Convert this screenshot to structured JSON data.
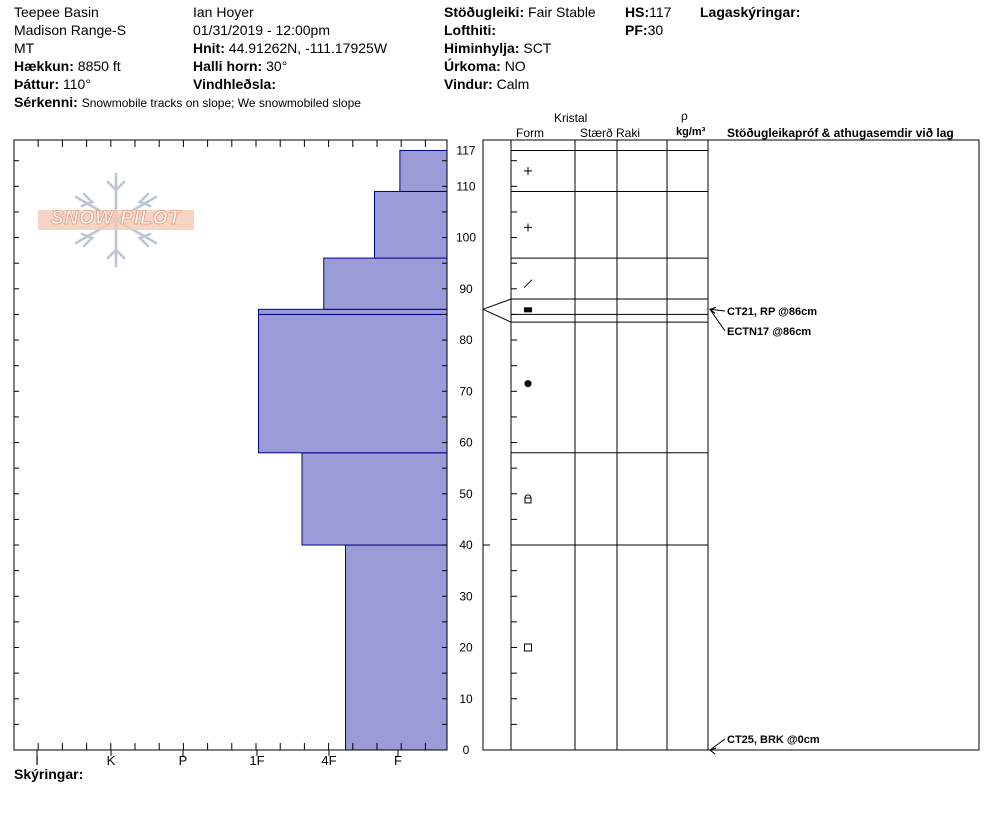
{
  "header": {
    "location": "Teepee Basin",
    "range": "Madison Range-S",
    "state": "MT",
    "elevation_label": "Hækkun:",
    "elevation_value": "8850 ft",
    "aspect_label": "Þáttur:",
    "aspect_value": "110°",
    "features_label": "Sérkenni:",
    "features_value": "Snowmobile tracks on slope; We snowmobiled slope",
    "observer": "Ian Hoyer",
    "datetime": "01/31/2019 - 12:00pm",
    "coords_label": "Hnit:",
    "coords_value": "44.91262N, -111.17925W",
    "slope_label": "Halli horn:",
    "slope_value": "30°",
    "wind_loading_label": "Vindhleðsla:",
    "wind_loading_value": "",
    "stability_label": "Stöðugleiki:",
    "stability_value": "Fair Stable",
    "airtemp_label": "Lofthiti:",
    "airtemp_value": "",
    "sky_label": "Himinhylja:",
    "sky_value": "SCT",
    "precip_label": "Úrkoma:",
    "precip_value": "NO",
    "wind_label": "Vindur:",
    "wind_value": "Calm",
    "hs_label": "HS:",
    "hs_value": "117",
    "pf_label": "PF:",
    "pf_value": "30",
    "layer_notes_label": "Lagaskýringar:"
  },
  "legend_label": "Skýringar:",
  "logo_text": "SNOW PILOT",
  "columns": {
    "crystal": "Kristal",
    "form": "Form",
    "size": "Stærð",
    "moisture": "Raki",
    "rho": "ρ",
    "density_unit": "kg/m³",
    "tests": "Stöðugleikapróf & athugasemdir við lag"
  },
  "colors": {
    "hardness_fill": "#9b9bd7",
    "hardness_edge": "#00008b",
    "grid": "#000000"
  },
  "chart_data": {
    "type": "bar",
    "title": "",
    "hardness_categories": [
      "I",
      "K",
      "P",
      "1F",
      "4F",
      "F"
    ],
    "hardness_axis_order": "right-to-left",
    "y_range": [
      0,
      117
    ],
    "y_ticks": [
      0,
      10,
      20,
      30,
      40,
      50,
      60,
      70,
      80,
      90,
      100,
      110,
      117
    ],
    "layers": [
      {
        "bottom": 0,
        "top": 40,
        "hardness": 1.4,
        "form": "square"
      },
      {
        "bottom": 40,
        "top": 58,
        "hardness": 2.0,
        "form": "rounding-faceted"
      },
      {
        "bottom": 58,
        "top": 85,
        "hardness": 2.6,
        "form": "dot"
      },
      {
        "bottom": 85,
        "top": 86,
        "hardness": 2.6,
        "form": "filled-rect"
      },
      {
        "bottom": 86,
        "top": 96,
        "hardness": 1.7,
        "form": "slash"
      },
      {
        "bottom": 96,
        "top": 109,
        "hardness": 1.0,
        "form": "plus"
      },
      {
        "bottom": 109,
        "top": 117,
        "hardness": 0.65,
        "form": "plus"
      }
    ],
    "tests": [
      {
        "text": "CT21, RP @86cm",
        "depth": 86
      },
      {
        "text": "ECTN17 @86cm",
        "depth": 86
      },
      {
        "text": "CT25, BRK @0cm",
        "depth": 0
      }
    ]
  }
}
